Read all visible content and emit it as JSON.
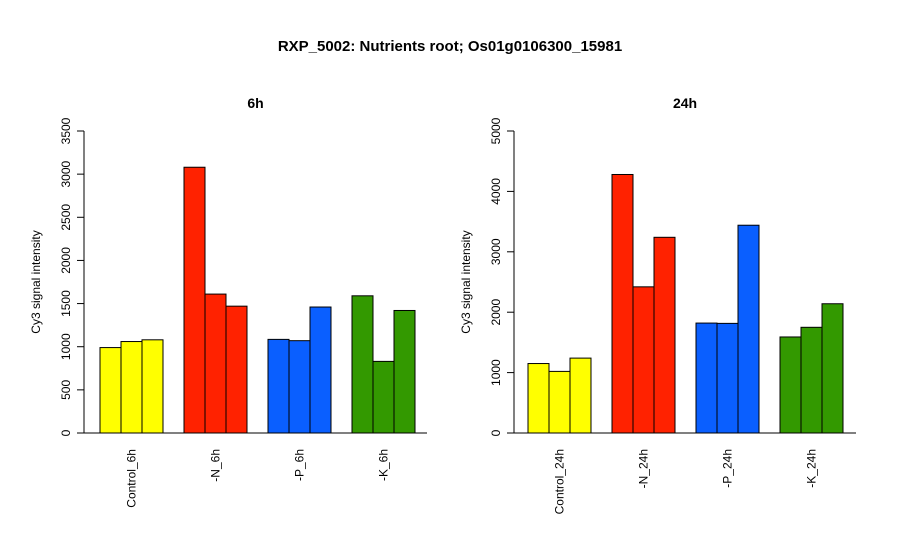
{
  "title": "RXP_5002: Nutrients root; Os01g0106300_15981",
  "chart_data": [
    {
      "type": "bar",
      "title": "6h",
      "ylabel": "Cy3 signal intensity",
      "ylim": [
        0,
        3500
      ],
      "yticks": [
        0,
        500,
        1000,
        1500,
        2000,
        2500,
        3000,
        3500
      ],
      "grid": false,
      "groups": [
        {
          "label": "Control_6h",
          "color": "#ffff00",
          "values": [
            990,
            1060,
            1080
          ]
        },
        {
          "label": "-N_6h",
          "color": "#ff2200",
          "values": [
            3080,
            1610,
            1470
          ]
        },
        {
          "label": "-P_6h",
          "color": "#0a5fff",
          "values": [
            1085,
            1070,
            1460
          ]
        },
        {
          "label": "-K_6h",
          "color": "#339900",
          "values": [
            1590,
            830,
            1420
          ]
        }
      ]
    },
    {
      "type": "bar",
      "title": "24h",
      "ylabel": "Cy3 signal intensity",
      "ylim": [
        0,
        5000
      ],
      "yticks": [
        0,
        1000,
        2000,
        3000,
        4000,
        5000
      ],
      "grid": false,
      "groups": [
        {
          "label": "Control_24h",
          "color": "#ffff00",
          "values": [
            1150,
            1020,
            1240
          ]
        },
        {
          "label": "-N_24h",
          "color": "#ff2200",
          "values": [
            4280,
            2420,
            3240
          ]
        },
        {
          "label": "-P_24h",
          "color": "#0a5fff",
          "values": [
            1820,
            1815,
            3440
          ]
        },
        {
          "label": "-K_24h",
          "color": "#339900",
          "values": [
            1590,
            1750,
            2140
          ]
        }
      ]
    }
  ]
}
